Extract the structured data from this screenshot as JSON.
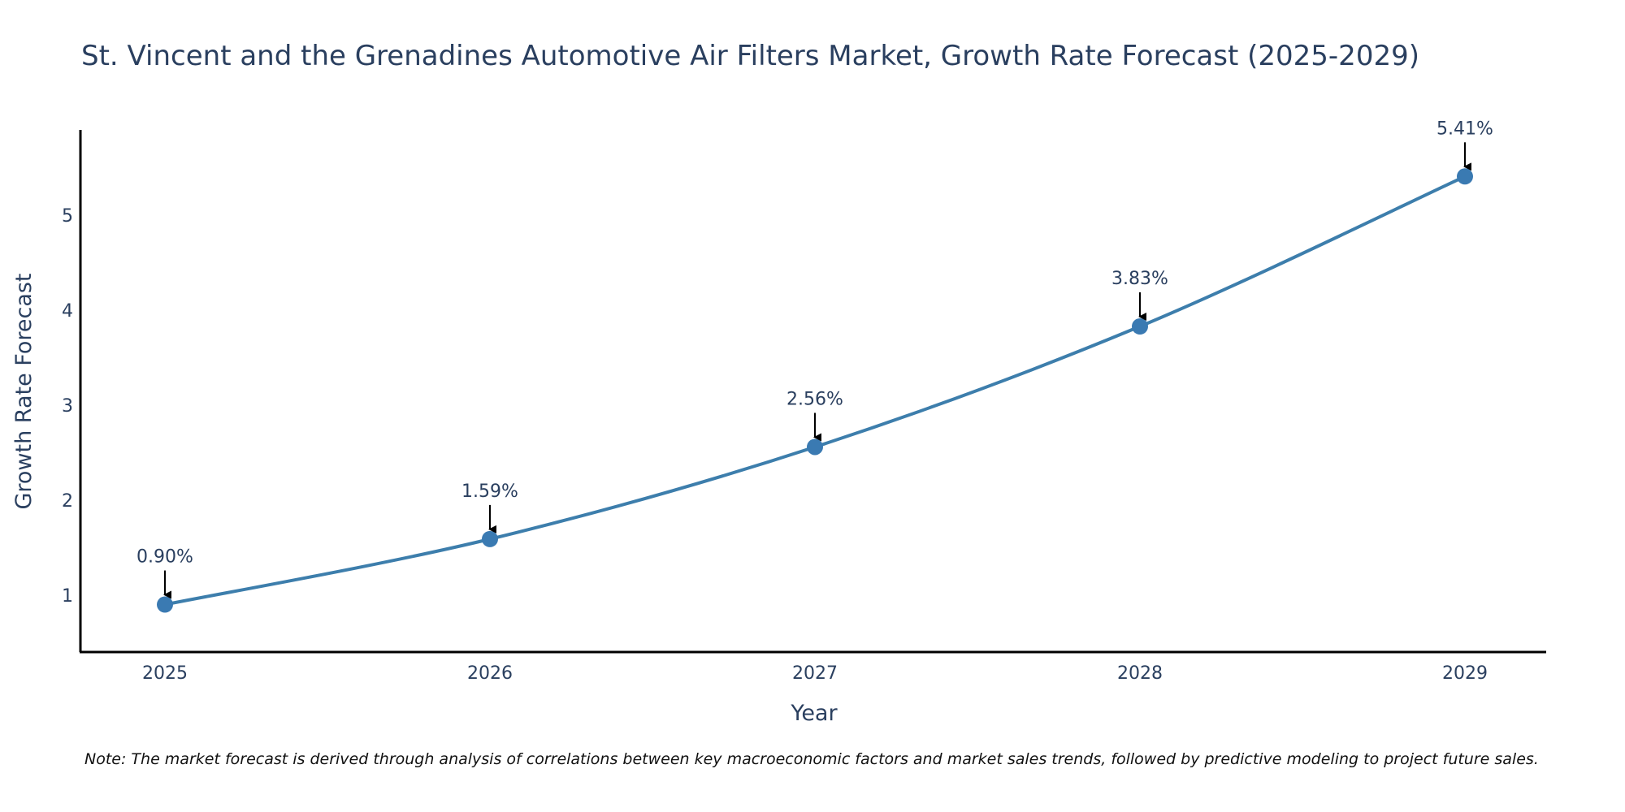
{
  "chart_data": {
    "type": "line",
    "title": "St. Vincent and the Grenadines Automotive Air Filters Market, Growth Rate Forecast (2025-2029)",
    "xlabel": "Year",
    "ylabel": "Growth Rate Forecast",
    "categories": [
      "2025",
      "2026",
      "2027",
      "2028",
      "2029"
    ],
    "series": [
      {
        "name": "Growth Rate Forecast",
        "values": [
          0.9,
          1.59,
          2.56,
          3.83,
          5.41
        ],
        "labels": [
          "0.90%",
          "1.59%",
          "2.56%",
          "3.83%",
          "5.41%"
        ]
      }
    ],
    "yticks": [
      "1",
      "2",
      "3",
      "4",
      "5"
    ],
    "ylim": [
      0.4,
      5.9
    ],
    "grid": false,
    "line_color": "#3d7eac",
    "marker_color": "#3a7ab2",
    "axis_color": "#000000",
    "text_color": "#2a3f5f"
  },
  "note": "Note: The market forecast is derived through analysis of correlations between key macroeconomic factors and market sales trends, followed by predictive modeling to project future sales."
}
